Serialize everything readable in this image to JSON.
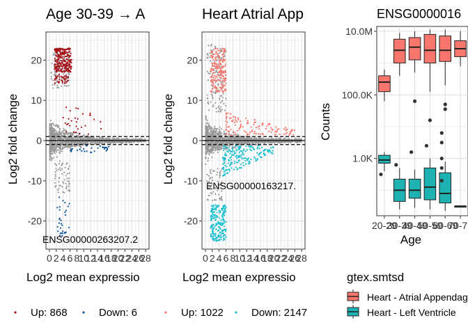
{
  "colors": {
    "panel_bg": "#ffffff",
    "grid": "#d9d9d9",
    "point_gray": "#999999",
    "ma1_up": "#a50f15",
    "ma1_down": "#08519c",
    "ma2_up": "#f8766d",
    "ma2_down": "#17becf",
    "box_red": "#f8766d",
    "box_teal": "#1fb2b2",
    "outlier": "#333333"
  },
  "chart_data": [
    {
      "type": "scatter",
      "title": "Age 30-39 → A",
      "xlabel": "Log2 mean expressio",
      "ylabel": "Log2 fold change",
      "x_ticks": [
        "0",
        "2",
        "4",
        "6",
        "8",
        "10",
        "12",
        "14",
        "16",
        "18",
        "20",
        "22",
        "24",
        "26",
        "28"
      ],
      "y_ticks": [
        20,
        10,
        0,
        -10,
        -20
      ],
      "xlim": [
        -1,
        29
      ],
      "ylim": [
        -27,
        27
      ],
      "thresholds": [
        1,
        -1
      ],
      "label_gene": "ENSG00000263207.2",
      "legend": [
        {
          "label": "Up: 868",
          "color_key": "ma1_up"
        },
        {
          "label": "Down: 6",
          "color_key": "ma1_down"
        }
      ],
      "clusters": [
        {
          "color_key": "point_gray",
          "n": 1400,
          "x": [
            0.1,
            28
          ],
          "y": [
            -6,
            6
          ],
          "shape": "ma"
        },
        {
          "color_key": "point_gray",
          "n": 120,
          "x": [
            0.5,
            6
          ],
          "y": [
            13,
            22
          ],
          "shape": "box"
        },
        {
          "color_key": "point_gray",
          "n": 60,
          "x": [
            1.5,
            6
          ],
          "y": [
            -13,
            -5
          ],
          "shape": "box"
        },
        {
          "color_key": "ma1_up",
          "n": 230,
          "x": [
            1.5,
            6.5
          ],
          "y": [
            17,
            23
          ],
          "shape": "box"
        },
        {
          "color_key": "ma1_up",
          "n": 40,
          "x": [
            1.5,
            5.5
          ],
          "y": [
            14,
            16.5
          ],
          "shape": "box"
        },
        {
          "color_key": "ma1_up",
          "n": 30,
          "x": [
            4,
            16
          ],
          "y": [
            1.5,
            8.5
          ],
          "shape": "box"
        },
        {
          "color_key": "ma1_down",
          "n": 30,
          "x": [
            2,
            6
          ],
          "y": [
            -24,
            -14
          ],
          "shape": "box"
        },
        {
          "color_key": "ma1_down",
          "n": 30,
          "x": [
            6,
            18
          ],
          "y": [
            -3,
            -1
          ],
          "shape": "box"
        }
      ]
    },
    {
      "type": "scatter",
      "title": "Heart Atrial App",
      "xlabel": "Log2 mean expressio",
      "ylabel": "Log2 fold change",
      "x_ticks": [
        "0",
        "2",
        "4",
        "6",
        "8",
        "10",
        "12",
        "14",
        "16",
        "18",
        "20",
        "22",
        "24",
        "26",
        "28"
      ],
      "y_ticks": [
        20,
        10,
        0,
        -10,
        -20
      ],
      "xlim": [
        -1,
        29
      ],
      "ylim": [
        -27,
        27
      ],
      "thresholds": [
        1,
        -1
      ],
      "label_gene": "ENSG00000163217.",
      "legend": [
        {
          "label": "Up: 1022",
          "color_key": "ma2_up"
        },
        {
          "label": "Down: 2147",
          "color_key": "ma2_down"
        }
      ],
      "clusters": [
        {
          "color_key": "point_gray",
          "n": 1500,
          "x": [
            0.1,
            28
          ],
          "y": [
            -6,
            6
          ],
          "shape": "ma"
        },
        {
          "color_key": "point_gray",
          "n": 140,
          "x": [
            0.5,
            6
          ],
          "y": [
            7,
            24
          ],
          "shape": "box"
        },
        {
          "color_key": "point_gray",
          "n": 60,
          "x": [
            0.5,
            5
          ],
          "y": [
            -15,
            -7
          ],
          "shape": "box"
        },
        {
          "color_key": "ma2_up",
          "n": 200,
          "x": [
            1.5,
            6
          ],
          "y": [
            12,
            23
          ],
          "shape": "box"
        },
        {
          "color_key": "ma2_up",
          "n": 120,
          "x": [
            6,
            26
          ],
          "y": [
            1.2,
            7
          ],
          "shape": "decay"
        },
        {
          "color_key": "ma2_down",
          "n": 220,
          "x": [
            1.5,
            6
          ],
          "y": [
            -25,
            -16
          ],
          "shape": "box"
        },
        {
          "color_key": "ma2_down",
          "n": 200,
          "x": [
            5,
            20
          ],
          "y": [
            -9,
            -1.2
          ],
          "shape": "decay"
        }
      ]
    },
    {
      "type": "box",
      "title": "ENSG0000016",
      "xlabel": "Age",
      "ylabel": "Counts",
      "categories": [
        "20-29",
        "30-39",
        "40-49",
        "50-59",
        "60-69",
        "70-79"
      ],
      "y_scale": "log",
      "y_ticks": [
        "10.0M",
        "100.0K",
        "1.0K"
      ],
      "ylim_log10": [
        1.2,
        7.15
      ],
      "legend_title": "gtex.smtsd",
      "legend": [
        {
          "label": "Heart - Atrial Appendage",
          "color_key": "box_red"
        },
        {
          "label": "Heart - Left Ventricle",
          "color_key": "box_teal"
        }
      ],
      "series": [
        {
          "name": "Heart - Atrial Appendage",
          "color_key": "box_red",
          "boxes": [
            {
              "q1": 5.1,
              "med": 5.4,
              "q3": 5.6,
              "lo": 4.8,
              "hi": 5.8,
              "outliers": []
            },
            {
              "q1": 6.0,
              "med": 6.4,
              "q3": 6.75,
              "lo": 5.6,
              "hi": 6.95,
              "outliers": []
            },
            {
              "q1": 6.1,
              "med": 6.5,
              "q3": 6.8,
              "lo": 5.7,
              "hi": 7.0,
              "outliers": [
                4.8
              ]
            },
            {
              "q1": 6.0,
              "med": 6.4,
              "q3": 6.9,
              "lo": 5.1,
              "hi": 7.05,
              "outliers": [
                4.2
              ]
            },
            {
              "q1": 6.05,
              "med": 6.4,
              "q3": 6.85,
              "lo": 5.3,
              "hi": 7.05,
              "outliers": [
                4.7,
                4.55
              ]
            },
            {
              "q1": 6.2,
              "med": 6.45,
              "q3": 6.7,
              "lo": 5.9,
              "hi": 7.0,
              "outliers": []
            }
          ]
        },
        {
          "name": "Heart - Left Ventricle",
          "color_key": "box_teal",
          "boxes": [
            {
              "q1": 2.85,
              "med": 2.95,
              "q3": 3.1,
              "lo": 2.6,
              "hi": 3.2,
              "outliers": [
                2.5
              ]
            },
            {
              "q1": 1.65,
              "med": 2.0,
              "q3": 2.35,
              "lo": 1.4,
              "hi": 2.7,
              "outliers": [
                2.8
              ]
            },
            {
              "q1": 1.75,
              "med": 2.0,
              "q3": 2.35,
              "lo": 1.45,
              "hi": 2.65,
              "outliers": [
                3.2
              ]
            },
            {
              "q1": 1.7,
              "med": 2.1,
              "q3": 2.7,
              "lo": 1.4,
              "hi": 3.0,
              "outliers": [
                3.4
              ]
            },
            {
              "q1": 1.6,
              "med": 1.9,
              "q3": 2.55,
              "lo": 1.35,
              "hi": 2.9,
              "outliers": [
                3.0,
                2.7,
                2.3,
                3.8,
                3.5
              ]
            },
            {
              "q1": 1.5,
              "med": 1.5,
              "q3": 1.5,
              "lo": 1.5,
              "hi": 1.5,
              "outliers": []
            }
          ]
        }
      ]
    }
  ]
}
